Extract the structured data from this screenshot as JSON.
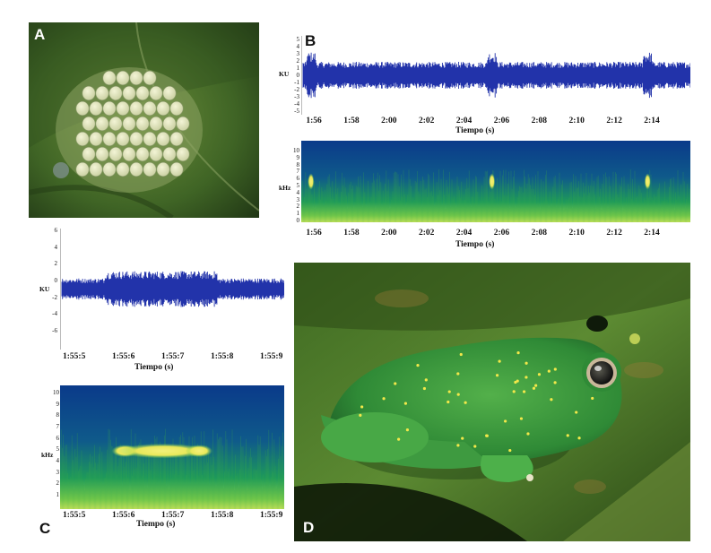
{
  "panels": {
    "A": {
      "letter": "A"
    },
    "B": {
      "letter": "B"
    },
    "C": {
      "letter": "C"
    },
    "D": {
      "letter": "D"
    }
  },
  "icons": [
    "egg-clutch-photo",
    "glass-frog-photo"
  ],
  "colors": {
    "waveform": "#2233aa",
    "spec_dark": "#0a3a8a",
    "spec_mid": "#1e9a5a",
    "spec_high": "#f4f07a",
    "leaf": "#4f7a2a"
  },
  "chart_data": [
    {
      "id": "B-oscillogram",
      "type": "line",
      "xlabel": "Tiempo (s)",
      "ylabel": "KU",
      "x_ticks": [
        "1:56",
        "1:58",
        "2:00",
        "2:02",
        "2:04",
        "2:06",
        "2:08",
        "2:10",
        "2:12",
        "2:14"
      ],
      "y_ticks": [
        "5",
        "4",
        "3",
        "2",
        "1",
        "0",
        "-1",
        "-2",
        "-3",
        "-4",
        "-5"
      ],
      "ylim": [
        -5,
        5
      ]
    },
    {
      "id": "B-spectrogram",
      "type": "heatmap",
      "xlabel": "Tiempo (s)",
      "ylabel": "kHz",
      "x_ticks": [
        "1:56",
        "1:58",
        "2:00",
        "2:02",
        "2:04",
        "2:06",
        "2:08",
        "2:10",
        "2:12",
        "2:14"
      ],
      "y_ticks": [
        "10",
        "9",
        "8",
        "7",
        "6",
        "5",
        "4",
        "3",
        "2",
        "1",
        "0"
      ],
      "ylim": [
        0,
        10
      ]
    },
    {
      "id": "C-oscillogram",
      "type": "line",
      "xlabel": "Tiempo (s)",
      "ylabel": "KU",
      "x_ticks": [
        "1:55:5",
        "1:55:6",
        "1:55:7",
        "1:55:8",
        "1:55:9"
      ],
      "y_ticks": [
        "6",
        "4",
        "2",
        "0",
        "-2",
        "-4",
        "-6"
      ],
      "ylim": [
        -6,
        6
      ]
    },
    {
      "id": "C-spectrogram",
      "type": "heatmap",
      "xlabel": "Tiempo (s)",
      "ylabel": "kHz",
      "x_ticks": [
        "1:55:5",
        "1:55:6",
        "1:55:7",
        "1:55:8",
        "1:55:9"
      ],
      "y_ticks": [
        "10",
        "9",
        "8",
        "7",
        "6",
        "5",
        "4",
        "3",
        "2",
        "1"
      ],
      "ylim": [
        0,
        10
      ]
    }
  ]
}
